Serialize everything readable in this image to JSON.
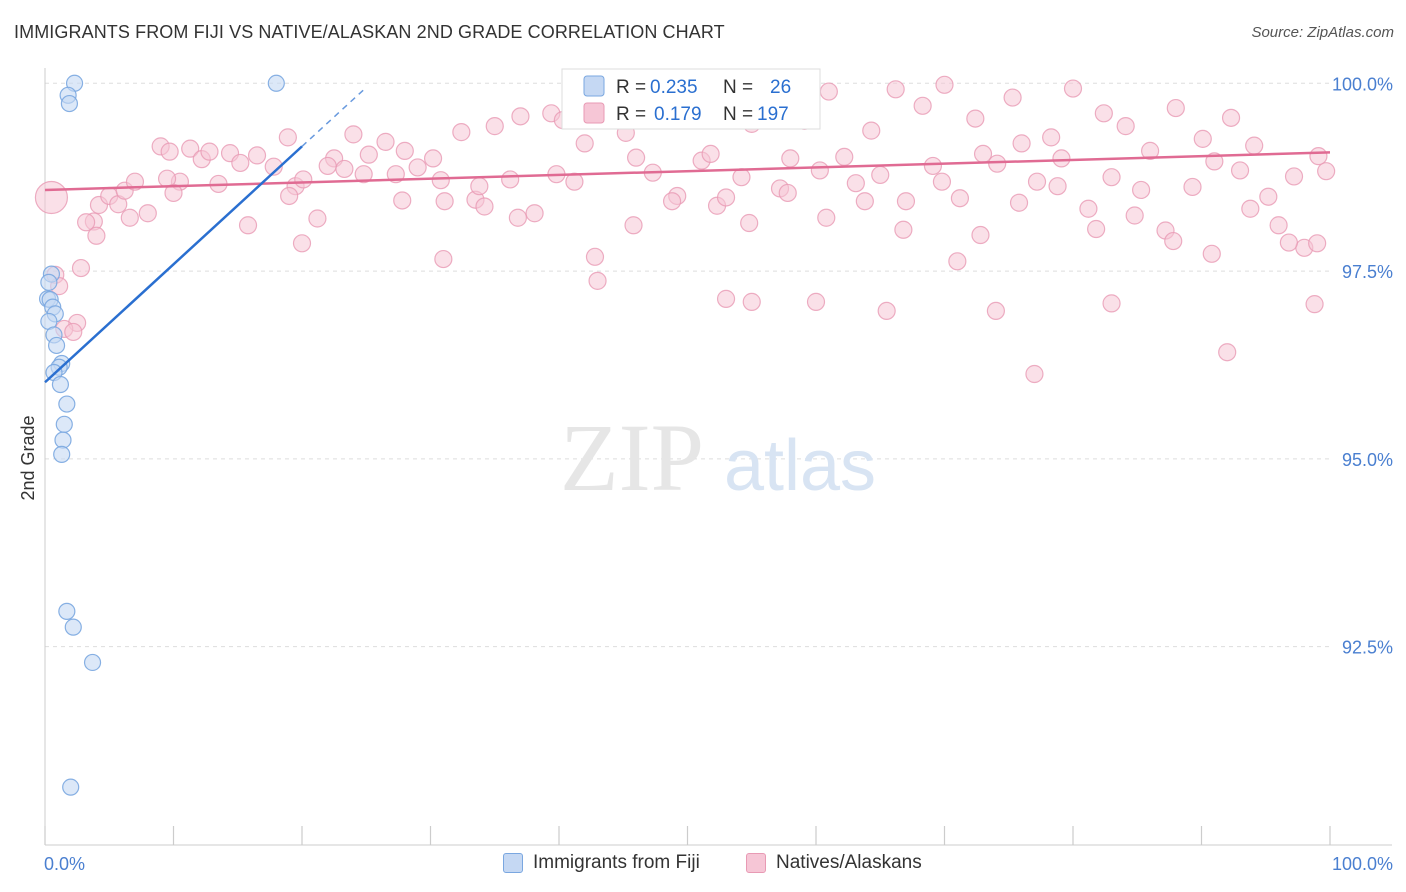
{
  "title": "IMMIGRANTS FROM FIJI VS NATIVE/ALASKAN 2ND GRADE CORRELATION CHART",
  "source": "Source: ZipAtlas.com",
  "watermark": {
    "zip": "ZIP",
    "atlas": "atlas"
  },
  "colors": {
    "blue": "#7aa7e0",
    "blue_fill": "#c5d8f3",
    "blue_line": "#2a6fd0",
    "pink": "#e89ab4",
    "pink_fill": "#f6c6d6",
    "pink_line": "#e06b93",
    "axis_text": "#4a7fd0",
    "grid": "#dddddd"
  },
  "legend": {
    "r_label": "R =",
    "n_label": "N =",
    "series": [
      {
        "r": "0.235",
        "n": "26"
      },
      {
        "r": "0.179",
        "n": "197"
      }
    ]
  },
  "chart_data": {
    "type": "scatter",
    "title": "IMMIGRANTS FROM FIJI VS NATIVE/ALASKAN 2ND GRADE CORRELATION CHART",
    "xlabel": "",
    "ylabel": "2nd Grade",
    "xlim": [
      0,
      100
    ],
    "ylim": [
      89.86,
      100.31
    ],
    "x_ticks": [
      "0.0%",
      "100.0%"
    ],
    "y_ticks": [
      {
        "value": 100.0,
        "label": "100.0%"
      },
      {
        "value": 97.5,
        "label": "97.5%"
      },
      {
        "value": 95.0,
        "label": "95.0%"
      },
      {
        "value": 92.5,
        "label": "92.5%"
      }
    ],
    "series": [
      {
        "name": "Immigrants from Fiji",
        "color": "blue",
        "trend": {
          "x0": 0,
          "y0": 96.02,
          "x1": 20,
          "y1": 99.16,
          "dash_to_x": 25
        },
        "points": [
          [
            2.3,
            100.0
          ],
          [
            18.0,
            100.0
          ],
          [
            1.8,
            99.84
          ],
          [
            1.9,
            99.73
          ],
          [
            0.5,
            97.46
          ],
          [
            0.3,
            97.35
          ],
          [
            0.2,
            97.13
          ],
          [
            0.4,
            97.12
          ],
          [
            0.6,
            97.02
          ],
          [
            0.8,
            96.93
          ],
          [
            0.3,
            96.83
          ],
          [
            0.7,
            96.65
          ],
          [
            0.9,
            96.51
          ],
          [
            1.3,
            96.27
          ],
          [
            1.1,
            96.22
          ],
          [
            0.7,
            96.15
          ],
          [
            1.2,
            95.99
          ],
          [
            1.7,
            95.73
          ],
          [
            1.5,
            95.46
          ],
          [
            1.4,
            95.25
          ],
          [
            1.3,
            95.06
          ],
          [
            1.7,
            92.97
          ],
          [
            2.2,
            92.76
          ],
          [
            3.7,
            92.29
          ],
          [
            2.0,
            90.63
          ]
        ]
      },
      {
        "name": "Natives/Alaskans",
        "color": "pink",
        "trend": {
          "x0": 0,
          "y0": 98.58,
          "x1": 100,
          "y1": 99.08
        },
        "points": [
          [
            0.5,
            98.48
          ],
          [
            2.8,
            97.54
          ],
          [
            3.8,
            98.16
          ],
          [
            4.2,
            98.38
          ],
          [
            5.0,
            98.5
          ],
          [
            5.7,
            98.39
          ],
          [
            6.2,
            98.57
          ],
          [
            7.0,
            98.69
          ],
          [
            8.0,
            98.27
          ],
          [
            9.0,
            99.16
          ],
          [
            9.7,
            99.09
          ],
          [
            10.5,
            98.69
          ],
          [
            11.3,
            99.13
          ],
          [
            12.2,
            98.99
          ],
          [
            13.5,
            98.66
          ],
          [
            14.4,
            99.07
          ],
          [
            15.2,
            98.94
          ],
          [
            16.5,
            99.04
          ],
          [
            17.8,
            98.89
          ],
          [
            18.9,
            99.28
          ],
          [
            19.5,
            98.63
          ],
          [
            20.1,
            98.72
          ],
          [
            21.2,
            98.2
          ],
          [
            22.5,
            99.0
          ],
          [
            23.3,
            98.86
          ],
          [
            24.0,
            99.32
          ],
          [
            25.2,
            99.05
          ],
          [
            26.5,
            99.22
          ],
          [
            27.3,
            98.79
          ],
          [
            28.0,
            99.1
          ],
          [
            29.0,
            98.88
          ],
          [
            30.2,
            99.0
          ],
          [
            31.1,
            98.43
          ],
          [
            32.4,
            99.35
          ],
          [
            33.5,
            98.45
          ],
          [
            34.2,
            98.36
          ],
          [
            35.0,
            99.43
          ],
          [
            36.2,
            98.72
          ],
          [
            37.0,
            99.56
          ],
          [
            38.1,
            98.27
          ],
          [
            39.4,
            99.6
          ],
          [
            40.3,
            99.51
          ],
          [
            41.2,
            98.69
          ],
          [
            42.0,
            99.2
          ],
          [
            43.5,
            99.71
          ],
          [
            44.1,
            99.79
          ],
          [
            45.2,
            99.34
          ],
          [
            46.0,
            99.01
          ],
          [
            47.3,
            98.81
          ],
          [
            48.0,
            99.61
          ],
          [
            49.2,
            98.5
          ],
          [
            50.0,
            99.85
          ],
          [
            51.1,
            98.97
          ],
          [
            52.3,
            98.37
          ],
          [
            53.0,
            98.48
          ],
          [
            54.2,
            98.75
          ],
          [
            55.0,
            99.46
          ],
          [
            56.1,
            99.65
          ],
          [
            57.2,
            98.6
          ],
          [
            58.0,
            99.0
          ],
          [
            59.1,
            99.5
          ],
          [
            60.3,
            98.84
          ],
          [
            61.0,
            99.89
          ],
          [
            62.2,
            99.02
          ],
          [
            63.1,
            98.67
          ],
          [
            64.3,
            99.37
          ],
          [
            65.0,
            98.78
          ],
          [
            66.2,
            99.92
          ],
          [
            67.0,
            98.43
          ],
          [
            68.3,
            99.7
          ],
          [
            69.1,
            98.9
          ],
          [
            70.0,
            99.98
          ],
          [
            71.2,
            98.47
          ],
          [
            72.4,
            99.53
          ],
          [
            73.0,
            99.06
          ],
          [
            74.1,
            98.93
          ],
          [
            75.3,
            99.81
          ],
          [
            76.0,
            99.2
          ],
          [
            77.2,
            98.69
          ],
          [
            78.3,
            99.28
          ],
          [
            79.1,
            99.0
          ],
          [
            80.0,
            99.93
          ],
          [
            81.2,
            98.33
          ],
          [
            82.4,
            99.6
          ],
          [
            83.0,
            98.75
          ],
          [
            84.1,
            99.43
          ],
          [
            85.3,
            98.58
          ],
          [
            86.0,
            99.1
          ],
          [
            87.2,
            98.04
          ],
          [
            88.0,
            99.67
          ],
          [
            89.3,
            98.62
          ],
          [
            90.1,
            99.26
          ],
          [
            91.0,
            98.96
          ],
          [
            92.3,
            99.54
          ],
          [
            93.0,
            98.84
          ],
          [
            94.1,
            99.17
          ],
          [
            95.2,
            98.49
          ],
          [
            96.0,
            98.11
          ],
          [
            97.2,
            98.76
          ],
          [
            98.0,
            97.81
          ],
          [
            99.1,
            99.03
          ],
          [
            99.7,
            98.83
          ],
          [
            3.2,
            98.15
          ],
          [
            6.6,
            98.21
          ],
          [
            9.5,
            98.73
          ],
          [
            12.8,
            99.09
          ],
          [
            15.8,
            98.11
          ],
          [
            19.0,
            98.5
          ],
          [
            22.0,
            98.9
          ],
          [
            24.8,
            98.79
          ],
          [
            27.8,
            98.44
          ],
          [
            30.8,
            98.71
          ],
          [
            33.8,
            98.63
          ],
          [
            36.8,
            98.21
          ],
          [
            39.8,
            98.79
          ],
          [
            42.8,
            97.69
          ],
          [
            45.8,
            98.11
          ],
          [
            48.8,
            98.43
          ],
          [
            51.8,
            99.06
          ],
          [
            54.8,
            98.14
          ],
          [
            57.8,
            98.54
          ],
          [
            60.8,
            98.21
          ],
          [
            63.8,
            98.43
          ],
          [
            66.8,
            98.05
          ],
          [
            69.8,
            98.69
          ],
          [
            72.8,
            97.98
          ],
          [
            75.8,
            98.41
          ],
          [
            78.8,
            98.63
          ],
          [
            81.8,
            98.06
          ],
          [
            84.8,
            98.24
          ],
          [
            87.8,
            97.9
          ],
          [
            90.8,
            97.73
          ],
          [
            93.8,
            98.33
          ],
          [
            96.8,
            97.88
          ],
          [
            99.0,
            97.87
          ],
          [
            4.0,
            97.97
          ],
          [
            10.0,
            98.54
          ],
          [
            20.0,
            97.87
          ],
          [
            31.0,
            97.66
          ],
          [
            43.0,
            97.37
          ],
          [
            53.0,
            97.13
          ],
          [
            55.0,
            97.09
          ],
          [
            60.0,
            97.09
          ],
          [
            65.5,
            96.97
          ],
          [
            71.0,
            97.63
          ],
          [
            74.0,
            96.97
          ],
          [
            77.0,
            96.13
          ],
          [
            83.0,
            97.07
          ],
          [
            92.0,
            96.42
          ],
          [
            98.8,
            97.06
          ],
          [
            2.5,
            96.81
          ],
          [
            1.5,
            96.73
          ],
          [
            2.2,
            96.69
          ],
          [
            0.8,
            97.45
          ],
          [
            1.1,
            97.3
          ]
        ]
      }
    ]
  },
  "bottom_legend": [
    {
      "label": "Immigrants from Fiji"
    },
    {
      "label": "Natives/Alaskans"
    }
  ]
}
